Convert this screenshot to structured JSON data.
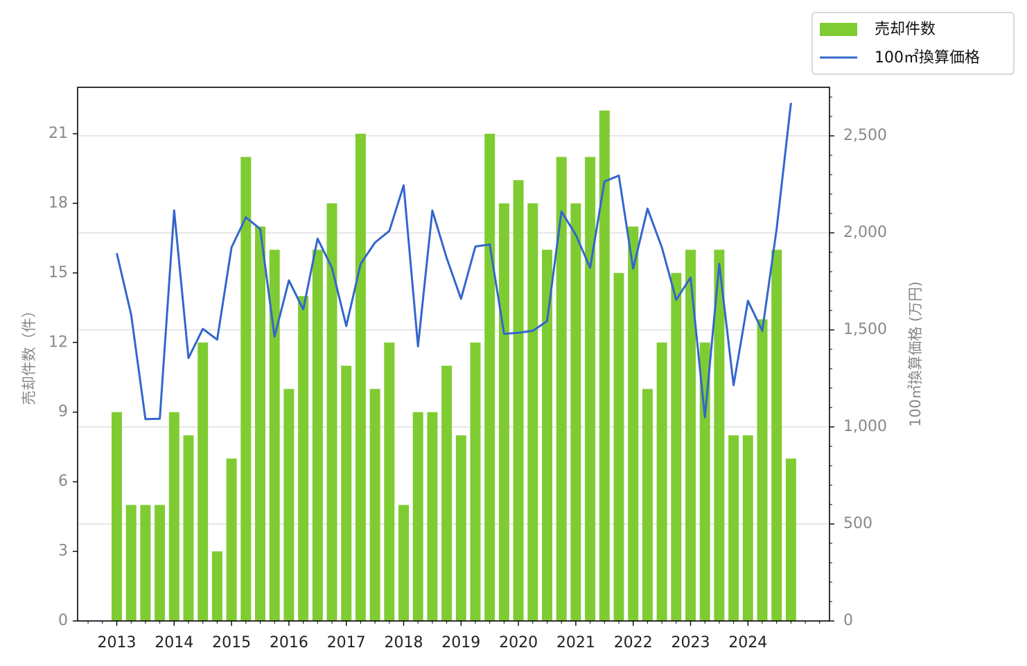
{
  "chart_data": {
    "type": "bar+line",
    "x_tick_labels": [
      "2013",
      "2014",
      "2015",
      "2016",
      "2017",
      "2018",
      "2019",
      "2020",
      "2021",
      "2022",
      "2023",
      "2024"
    ],
    "quarters_per_year": 4,
    "series": [
      {
        "name": "売却件数",
        "type": "bar",
        "axis": "left",
        "color": "#7fcc32",
        "values": [
          9,
          5,
          5,
          5,
          9,
          8,
          12,
          3,
          7,
          20,
          17,
          16,
          10,
          14,
          16,
          18,
          11,
          21,
          10,
          12,
          5,
          9,
          9,
          11,
          8,
          12,
          21,
          18,
          19,
          18,
          16,
          20,
          18,
          20,
          22,
          15,
          17,
          10,
          12,
          15,
          16,
          12,
          16,
          8,
          8,
          13,
          16,
          7
        ]
      },
      {
        "name": "100㎡換算価格",
        "type": "line",
        "axis": "right",
        "color": "#3366cc",
        "values": [
          1895,
          1580,
          1040,
          1042,
          2115,
          1355,
          1505,
          1450,
          1925,
          2080,
          2020,
          1465,
          1755,
          1605,
          1970,
          1820,
          1520,
          1840,
          1950,
          2010,
          2245,
          1415,
          2115,
          1870,
          1660,
          1930,
          1940,
          1480,
          1485,
          1495,
          1545,
          2110,
          1990,
          1820,
          2265,
          2295,
          1815,
          2125,
          1925,
          1655,
          1770,
          1050,
          1840,
          1215,
          1650,
          1495,
          2020,
          2670
        ]
      }
    ],
    "y_left": {
      "label": "売却件数（件）",
      "min": 0,
      "max": 23,
      "ticks": [
        0,
        3,
        6,
        9,
        12,
        15,
        18,
        21
      ],
      "tick_labels": [
        "0",
        "3",
        "6",
        "9",
        "12",
        "15",
        "18",
        "21"
      ]
    },
    "y_right": {
      "label": "100㎡換算価格 (万円)",
      "min": 0,
      "max": 2750,
      "ticks": [
        0,
        500,
        1000,
        1500,
        2000,
        2500
      ],
      "tick_labels": [
        "0",
        "500",
        "1,000",
        "1,500",
        "2,000",
        "2,500"
      ]
    },
    "grid": "horizontal (right axis)",
    "legend": {
      "position": "top-right, outside plot",
      "entries": [
        "売却件数",
        "100㎡換算価格"
      ]
    }
  }
}
